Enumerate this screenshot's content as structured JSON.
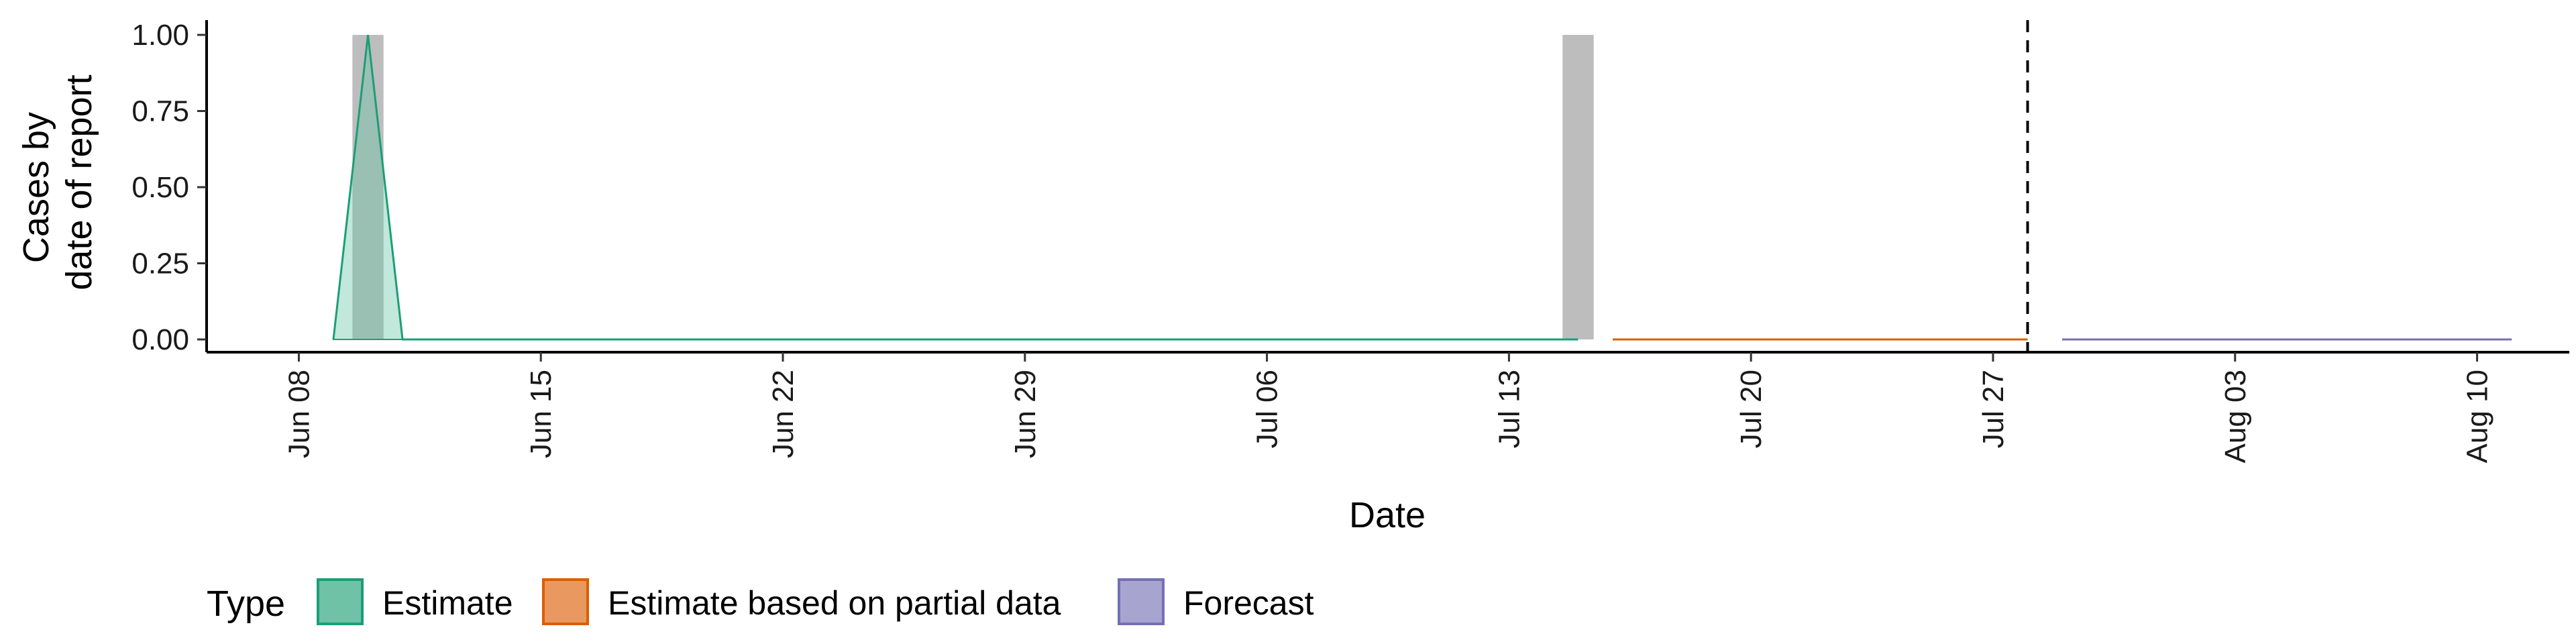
{
  "chart_data": {
    "type": "area",
    "xlabel": "Date",
    "ylabel_lines": [
      "Cases by",
      "date of report"
    ],
    "x_ticks": [
      "Jun 08",
      "Jun 15",
      "Jun 22",
      "Jun 29",
      "Jul 06",
      "Jul 13",
      "Jul 20",
      "Jul 27",
      "Aug 03",
      "Aug 10"
    ],
    "y_ticks": [
      "0.00",
      "0.25",
      "0.50",
      "0.75",
      "1.00"
    ],
    "ylim": [
      0,
      1
    ],
    "xlim": [
      "2020-06-05 08:00",
      "2020-08-12 16:00"
    ],
    "reference_line_date": "2020-07-28",
    "reported_cases": [
      {
        "date": "2020-06-10",
        "value": 1
      },
      {
        "date": "2020-07-15",
        "value": 1
      }
    ],
    "series": [
      {
        "name": "Estimate",
        "color": "#1b9e77",
        "fill": "#66c2a5",
        "points": [
          {
            "date": "2020-06-09",
            "value": 0,
            "lower": 0,
            "upper": 0
          },
          {
            "date": "2020-06-10",
            "value": 1,
            "lower": 0,
            "upper": 1
          },
          {
            "date": "2020-06-11",
            "value": 0,
            "lower": 0,
            "upper": 0
          },
          {
            "date": "2020-06-12",
            "value": 0,
            "lower": 0,
            "upper": 0
          },
          {
            "date": "2020-07-15",
            "value": 0,
            "lower": 0,
            "upper": 0
          }
        ]
      },
      {
        "name": "Estimate based on partial data",
        "color": "#d95f02",
        "fill": "#e6965a",
        "points": [
          {
            "date": "2020-07-16",
            "value": 0,
            "lower": 0,
            "upper": 0
          },
          {
            "date": "2020-07-28",
            "value": 0,
            "lower": 0,
            "upper": 0
          }
        ]
      },
      {
        "name": "Forecast",
        "color": "#7570b3",
        "fill": "#a8a4d0",
        "points": [
          {
            "date": "2020-07-29",
            "value": 0,
            "lower": 0,
            "upper": 0
          },
          {
            "date": "2020-08-11",
            "value": 0,
            "lower": 0,
            "upper": 0
          }
        ]
      }
    ]
  },
  "legend": {
    "title": "Type",
    "items": [
      {
        "label": "Estimate",
        "fill": "#6fc2a5",
        "stroke": "#1b9e77"
      },
      {
        "label": "Estimate based on partial data",
        "fill": "#e99960",
        "stroke": "#d95f02"
      },
      {
        "label": "Forecast",
        "fill": "#a8a4d0",
        "stroke": "#7570b3"
      }
    ]
  },
  "colors": {
    "reported_bar": "#bdbdbd",
    "axis": "#000000",
    "reference_line": "#000000"
  }
}
